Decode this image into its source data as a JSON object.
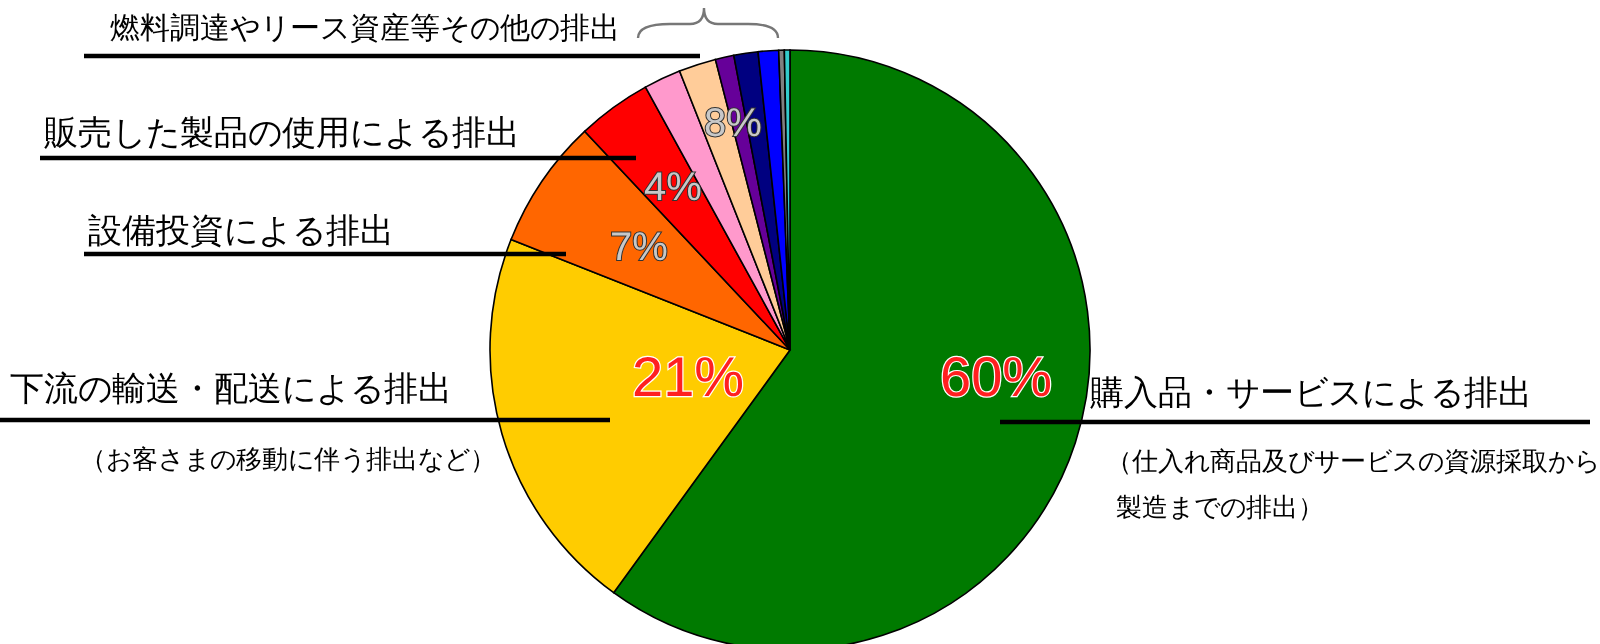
{
  "chart_data": {
    "type": "pie",
    "categories": [
      "購入品・サービスによる排出",
      "下流の輸送・配送による排出",
      "設備投資による排出",
      "販売した製品の使用による排出",
      null,
      null,
      null,
      null,
      null,
      null,
      null
    ],
    "values": [
      60,
      21,
      7,
      4,
      2,
      2,
      1,
      1.3,
      1.1,
      0.3,
      0.3
    ],
    "colors": [
      "#007a00",
      "#ffcc00",
      "#ff6600",
      "#ff0000",
      "#ff99cc",
      "#ffcc99",
      "#660099",
      "#000080",
      "#0000ff",
      "#808080",
      "#33cccc"
    ],
    "value_labels": [
      "60%",
      "21%",
      "7%",
      "4%",
      null,
      null,
      null,
      null,
      null,
      null,
      null
    ],
    "annotations": [
      "（仕入れ商品及びサービスの資源採取から",
      "製造までの排出）",
      "（お客さまの移動に伴う排出など）",
      "燃料調達やリース資産等その他の排出",
      "8%"
    ]
  }
}
